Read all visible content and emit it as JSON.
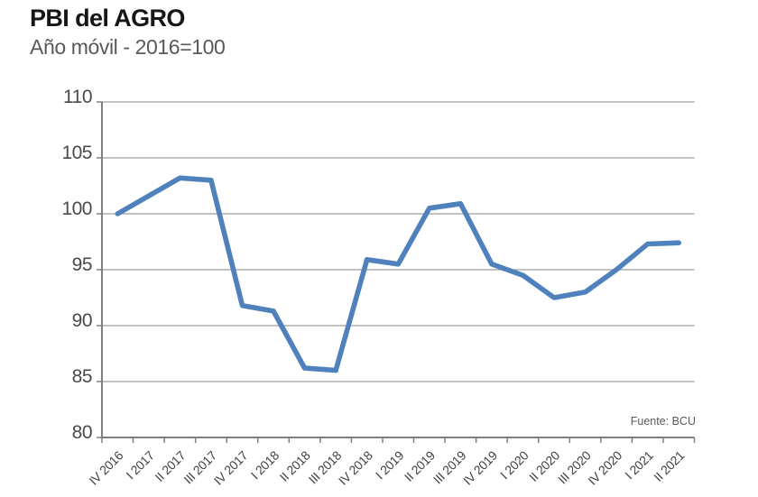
{
  "header": {
    "title": "PBI del AGRO",
    "subtitle": "Año móvil - 2016=100"
  },
  "source_note": "Fuente: BCU",
  "chart_data": {
    "type": "line",
    "title": "PBI del AGRO",
    "subtitle": "Año móvil - 2016=100",
    "source": "Fuente: BCU",
    "categories": [
      "IV 2016",
      "I 2017",
      "II 2017",
      "III 2017",
      "IV 2017",
      "I 2018",
      "II 2018",
      "III 2018",
      "IV 2018",
      "I 2019",
      "II 2019",
      "III 2019",
      "IV 2019",
      "I 2020",
      "II 2020",
      "III 2020",
      "IV 2020",
      "I 2021",
      "II 2021"
    ],
    "values": [
      100.0,
      101.6,
      103.2,
      103.0,
      91.8,
      91.3,
      86.2,
      86.0,
      95.9,
      95.5,
      100.5,
      100.9,
      95.5,
      94.5,
      92.5,
      93.0,
      95.0,
      97.3,
      97.4
    ],
    "ylim": [
      80,
      110
    ],
    "ytick_step": 5,
    "grid": true,
    "legend": "none",
    "x_label_rotation": -45,
    "colors": {
      "line": "#4f81bd",
      "grid": "#9e9e9e",
      "axis": "#7f7f7f",
      "tick_label": "#454545",
      "title": "#161616",
      "subtitle": "#595959"
    }
  }
}
